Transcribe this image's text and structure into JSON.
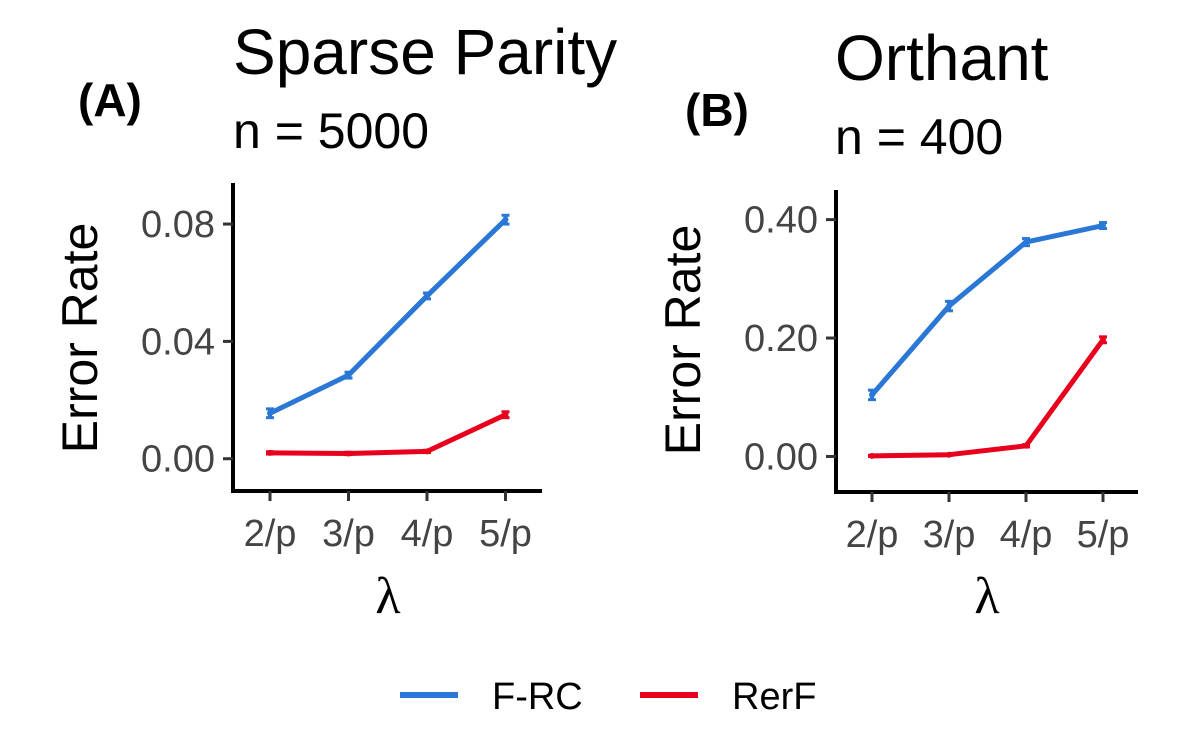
{
  "chart_data": [
    {
      "type": "line",
      "panel": "(A)",
      "title": "Sparse Parity",
      "subtitle": "n = 5000",
      "xlabel": "λ",
      "ylabel": "Error Rate",
      "categories": [
        "2/p",
        "3/p",
        "4/p",
        "5/p"
      ],
      "yticks": [
        "0.00",
        "0.04",
        "0.08"
      ],
      "ytick_values": [
        0.0,
        0.04,
        0.08
      ],
      "ylim": [
        -0.011,
        0.094
      ],
      "series": [
        {
          "name": "F-RC",
          "color": "#2A77D6",
          "values": [
            0.0155,
            0.0285,
            0.0555,
            0.0815
          ],
          "err": [
            0.0015,
            0.001,
            0.001,
            0.0015
          ]
        },
        {
          "name": "RerF",
          "color": "#E8001C",
          "values": [
            0.002,
            0.0018,
            0.0025,
            0.015
          ],
          "err": [
            0.0004,
            0.0004,
            0.0004,
            0.001
          ]
        }
      ]
    },
    {
      "type": "line",
      "panel": "(B)",
      "title": "Orthant",
      "subtitle": "n = 400",
      "xlabel": "λ",
      "ylabel": "Error Rate",
      "categories": [
        "2/p",
        "3/p",
        "4/p",
        "5/p"
      ],
      "yticks": [
        "0.00",
        "0.20",
        "0.40"
      ],
      "ytick_values": [
        0.0,
        0.2,
        0.4
      ],
      "ylim": [
        -0.06,
        0.45
      ],
      "series": [
        {
          "name": "F-RC",
          "color": "#2A77D6",
          "values": [
            0.104,
            0.254,
            0.362,
            0.39
          ],
          "err": [
            0.008,
            0.008,
            0.006,
            0.005
          ]
        },
        {
          "name": "RerF",
          "color": "#E8001C",
          "values": [
            0.001,
            0.003,
            0.018,
            0.197
          ],
          "err": [
            0.001,
            0.001,
            0.002,
            0.005
          ]
        }
      ]
    }
  ],
  "legend": {
    "items": [
      {
        "label": "F-RC",
        "color": "#2A77D6"
      },
      {
        "label": "RerF",
        "color": "#E8001C"
      }
    ],
    "position": "bottom"
  }
}
